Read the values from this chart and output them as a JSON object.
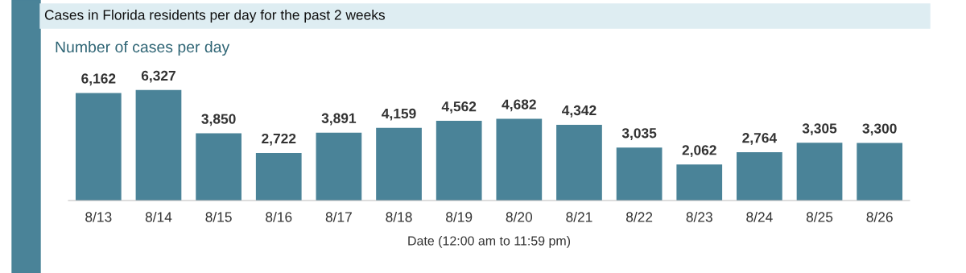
{
  "chart_data": {
    "type": "bar",
    "title": "Cases in Florida residents per day for the past 2 weeks",
    "subtitle": "Number of cases per day",
    "xlabel": "Date (12:00 am to 11:59 pm)",
    "categories": [
      "8/13",
      "8/14",
      "8/15",
      "8/16",
      "8/17",
      "8/18",
      "8/19",
      "8/20",
      "8/21",
      "8/22",
      "8/23",
      "8/24",
      "8/25",
      "8/26"
    ],
    "values": [
      6162,
      6327,
      3850,
      2722,
      3891,
      4159,
      4562,
      4682,
      4342,
      3035,
      2062,
      2764,
      3305,
      3300
    ],
    "value_labels": [
      "6,162",
      "6,327",
      "3,850",
      "2,722",
      "3,891",
      "4,159",
      "4,562",
      "4,682",
      "4,342",
      "3,035",
      "2,062",
      "2,764",
      "3,305",
      "3,300"
    ],
    "color": "#4a8398",
    "grid": false,
    "legend": false
  }
}
